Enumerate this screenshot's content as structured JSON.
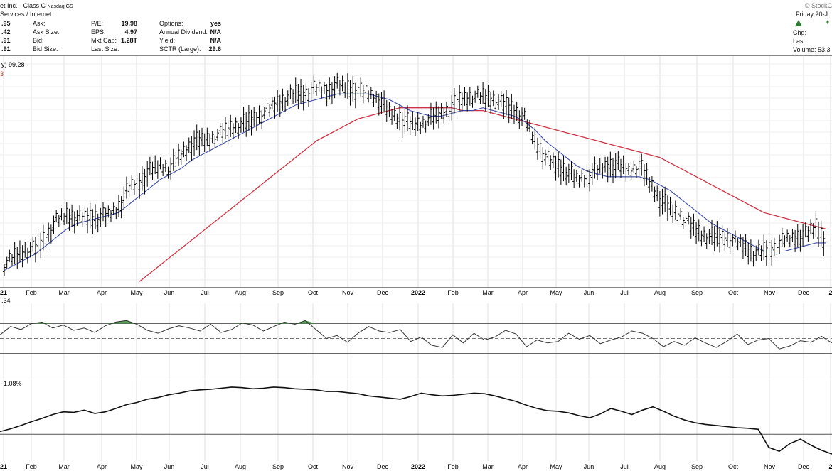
{
  "header": {
    "title": "et Inc. - Class C",
    "exchange": "Nasdaq GS",
    "watermark": "© StockC",
    "industry": "Services / Internet",
    "date_label": "Friday 20-J",
    "up_color": "#2e7d32",
    "col1": [
      {
        "value": ".95",
        "label": "Ask:"
      },
      {
        "value": ".42",
        "label": "Ask Size:"
      },
      {
        "value": ".91",
        "label": "Bid:"
      },
      {
        "value": ".91",
        "label": "Bid Size:"
      }
    ],
    "col2": [
      {
        "label": "P/E:",
        "value": "19.98"
      },
      {
        "label": "EPS:",
        "value": "4.97"
      },
      {
        "label": "Mkt Cap:",
        "value": "1.28T"
      },
      {
        "label": "Last Size:",
        "value": ""
      }
    ],
    "col3": [
      {
        "label": "Options:",
        "value": "yes"
      },
      {
        "label": "Annual Dividend:",
        "value": "N/A"
      },
      {
        "label": "Yield:",
        "value": "N/A"
      },
      {
        "label": "SCTR (Large):",
        "value": "29.6"
      }
    ],
    "right_labels": {
      "chg": "Chg:",
      "last": "Last:",
      "volume": "Volume: 53,3",
      "plus": "+"
    }
  },
  "chart_data": [
    {
      "type": "bar",
      "subtype": "ohlc-price",
      "label_text": "y) 99.28",
      "label_text2": "3",
      "label_color_2": "#cc2a2a",
      "x_axis": [
        "21",
        "Feb",
        "Mar",
        "Apr",
        "May",
        "Jun",
        "Jul",
        "Aug",
        "Sep",
        "Oct",
        "Nov",
        "Dec",
        "2022",
        "Feb",
        "Mar",
        "Apr",
        "May",
        "Jun",
        "Jul",
        "Aug",
        "Sep",
        "Oct",
        "Nov",
        "Dec",
        "2"
      ],
      "series": [
        {
          "role": "price",
          "color": "#000000",
          "values": [
            86,
            89,
            91,
            92,
            96,
            102,
            104,
            103,
            103,
            103,
            104,
            107,
            114,
            116,
            120,
            122,
            121,
            126,
            130,
            131,
            132,
            134,
            136,
            137,
            139,
            141,
            144,
            146,
            148,
            148,
            150,
            149,
            151,
            150,
            149,
            148,
            146,
            141,
            139,
            137,
            137,
            139,
            141,
            143,
            146,
            147,
            147,
            146,
            144,
            142,
            139,
            131,
            125,
            122,
            120,
            117,
            118,
            120,
            122,
            122,
            120,
            122,
            116,
            110,
            106,
            104,
            100,
            97,
            96,
            96,
            95,
            93,
            90,
            91,
            92,
            95,
            96,
            97,
            100,
            94
          ]
        },
        {
          "role": "ma-50",
          "color": "#3a4aa8",
          "values": [
            84,
            86,
            88,
            90,
            93,
            96,
            99,
            101,
            102,
            103,
            104,
            105,
            108,
            111,
            114,
            117,
            119,
            121,
            124,
            126,
            128,
            130,
            132,
            134,
            136,
            138,
            140,
            142,
            144,
            145,
            146,
            147,
            148,
            148,
            148,
            148,
            147,
            146,
            144,
            142,
            141,
            140,
            140,
            141,
            142,
            142,
            143,
            142,
            141,
            140,
            138,
            135,
            131,
            128,
            125,
            122,
            120,
            119,
            118,
            118,
            118,
            118,
            117,
            115,
            113,
            110,
            107,
            104,
            101,
            99,
            97,
            95,
            93,
            91,
            91,
            91,
            92,
            93,
            94,
            94
          ]
        },
        {
          "role": "ma-200",
          "color": "#cc3344",
          "values": [
            null,
            null,
            null,
            null,
            null,
            null,
            null,
            null,
            null,
            null,
            null,
            null,
            null,
            80,
            83,
            86,
            89,
            92,
            95,
            98,
            101,
            104,
            107,
            110,
            113,
            116,
            119,
            122,
            125,
            128,
            131,
            133,
            135,
            137,
            139,
            140,
            141,
            142,
            143,
            143,
            143,
            143,
            143,
            143,
            142,
            142,
            142,
            141,
            140,
            139,
            138,
            137,
            136,
            135,
            134,
            133,
            132,
            131,
            130,
            129,
            128,
            127,
            126,
            125,
            123,
            121,
            119,
            117,
            115,
            113,
            111,
            109,
            107,
            105,
            104,
            103,
            102,
            101,
            100,
            99
          ]
        }
      ]
    },
    {
      "type": "line",
      "subtype": "rsi",
      "label_text": ".34",
      "ylim": [
        0,
        100
      ],
      "reference_lines": [
        70,
        50,
        30
      ],
      "overbought_fill": "#3c8a3c",
      "values": [
        55,
        66,
        62,
        70,
        72,
        64,
        68,
        61,
        64,
        58,
        67,
        72,
        74,
        69,
        61,
        57,
        63,
        67,
        64,
        60,
        69,
        58,
        62,
        71,
        68,
        60,
        66,
        72,
        69,
        74,
        62,
        50,
        54,
        45,
        57,
        66,
        60,
        58,
        62,
        46,
        52,
        41,
        38,
        55,
        44,
        57,
        48,
        52,
        61,
        56,
        39,
        48,
        44,
        46,
        57,
        49,
        54,
        43,
        48,
        52,
        60,
        57,
        50,
        39,
        46,
        41,
        51,
        44,
        38,
        46,
        56,
        42,
        48,
        50,
        36,
        40,
        47,
        45,
        53,
        44
      ]
    },
    {
      "type": "line",
      "subtype": "relative-strength",
      "label_text": "-1.08%",
      "reference_line_value": -5.5,
      "values": [
        -5.0,
        -4.5,
        -3.9,
        -3.2,
        -2.6,
        -1.9,
        -1.4,
        -1.5,
        -1.1,
        -1.7,
        -1.4,
        -0.8,
        -0.1,
        0.3,
        0.9,
        1.2,
        1.7,
        2.0,
        2.4,
        2.6,
        2.7,
        2.9,
        3.1,
        3.0,
        2.8,
        2.9,
        3.1,
        3.0,
        2.8,
        2.7,
        2.6,
        2.3,
        2.3,
        2.1,
        1.9,
        1.5,
        1.3,
        1.1,
        0.9,
        1.4,
        2.0,
        1.7,
        1.5,
        1.6,
        1.8,
        2.0,
        1.9,
        1.5,
        1.0,
        0.5,
        -0.2,
        -0.8,
        -1.2,
        -1.3,
        -1.6,
        -2.1,
        -2.5,
        -1.8,
        -0.8,
        -1.3,
        -1.9,
        -1.1,
        -0.5,
        -1.3,
        -2.2,
        -2.9,
        -3.4,
        -3.7,
        -3.9,
        -4.1,
        -4.3,
        -4.4,
        -4.6,
        -7.9,
        -8.6,
        -7.2,
        -6.4,
        -7.5,
        -8.4,
        -9.1
      ]
    }
  ]
}
